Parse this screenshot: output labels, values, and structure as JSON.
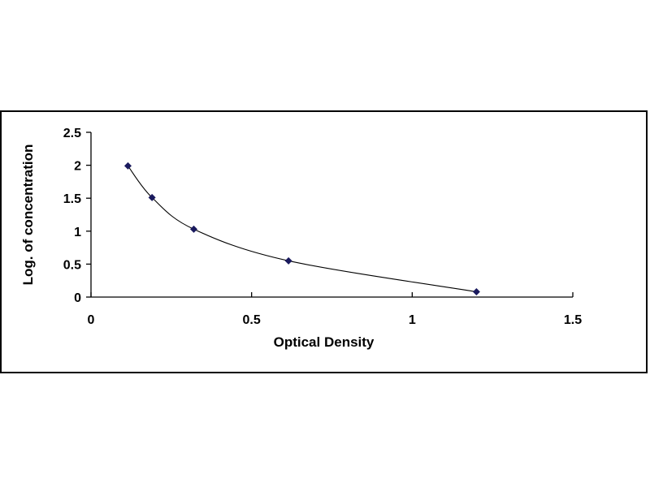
{
  "chart_data": {
    "type": "scatter",
    "title": "",
    "xlabel": "Optical Density",
    "ylabel": "Log. of concentration",
    "xlim": [
      0,
      1.5
    ],
    "ylim": [
      0,
      2.5
    ],
    "x_ticks": [
      "0",
      "0.5",
      "1",
      "1.5"
    ],
    "y_ticks": [
      "0",
      "0.5",
      "1",
      "1.5",
      "2",
      "2.5"
    ],
    "grid": false,
    "legend": "none",
    "marker": "diamond",
    "marker_color": "#1a1a5e",
    "line_color": "#000000",
    "trendline": "smooth",
    "series": [
      {
        "x": [
          0.115,
          0.19,
          0.32,
          0.615,
          1.2
        ],
        "y": [
          1.99,
          1.51,
          1.03,
          0.55,
          0.08
        ]
      }
    ]
  }
}
